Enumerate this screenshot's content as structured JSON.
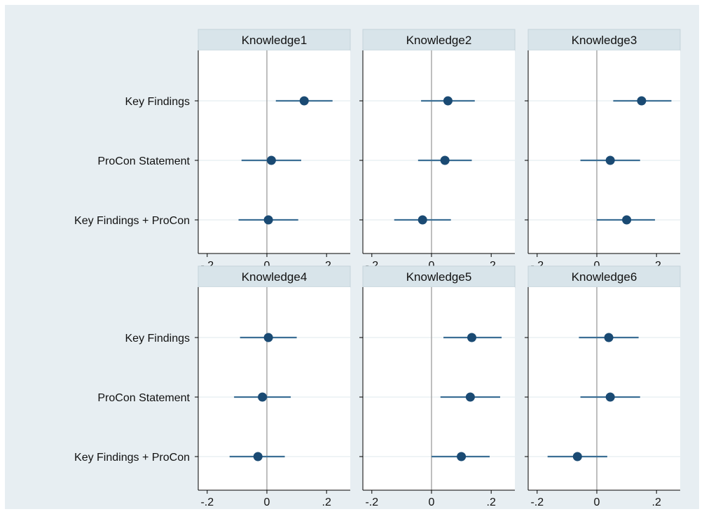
{
  "colors": {
    "outer_background": "#e7eef2",
    "plot_background": "#ffffff",
    "strip_background": "#d8e4ea",
    "strip_border": "#c5d3da",
    "gridline": "#eaf1f4",
    "zero_line": "#a8a8a8",
    "axis_line": "#000000",
    "marker": "#1a4a73",
    "ci_line": "#3c6f95"
  },
  "chart_data": {
    "type": "scatter",
    "subtype": "coefficient-plot-with-confidence-intervals",
    "categories": [
      "Key Findings",
      "ProCon Statement",
      "Key Findings + ProCon"
    ],
    "xlim": [
      -0.23,
      0.215
    ],
    "x_ticks": [
      {
        "value": -0.2,
        "label": "-.2"
      },
      {
        "value": 0,
        "label": "0"
      },
      {
        "value": 0.2,
        "label": ".2"
      }
    ],
    "reference_line": 0,
    "grid": "horizontal lines at categories",
    "panels": [
      {
        "title": "Knowledge1",
        "points": [
          {
            "category": "Key Findings",
            "estimate": 0.125,
            "lower": 0.03,
            "upper": 0.22
          },
          {
            "category": "ProCon Statement",
            "estimate": 0.015,
            "lower": -0.085,
            "upper": 0.115
          },
          {
            "category": "Key Findings + ProCon",
            "estimate": 0.005,
            "lower": -0.095,
            "upper": 0.105
          }
        ]
      },
      {
        "title": "Knowledge2",
        "points": [
          {
            "category": "Key Findings",
            "estimate": 0.055,
            "lower": -0.035,
            "upper": 0.145
          },
          {
            "category": "ProCon Statement",
            "estimate": 0.045,
            "lower": -0.045,
            "upper": 0.135
          },
          {
            "category": "Key Findings + ProCon",
            "estimate": -0.03,
            "lower": -0.125,
            "upper": 0.065
          }
        ]
      },
      {
        "title": "Knowledge3",
        "points": [
          {
            "category": "Key Findings",
            "estimate": 0.15,
            "lower": 0.055,
            "upper": 0.25
          },
          {
            "category": "ProCon Statement",
            "estimate": 0.045,
            "lower": -0.055,
            "upper": 0.145
          },
          {
            "category": "Key Findings + ProCon",
            "estimate": 0.1,
            "lower": 0.0,
            "upper": 0.195
          }
        ]
      },
      {
        "title": "Knowledge4",
        "points": [
          {
            "category": "Key Findings",
            "estimate": 0.005,
            "lower": -0.09,
            "upper": 0.1
          },
          {
            "category": "ProCon Statement",
            "estimate": -0.015,
            "lower": -0.11,
            "upper": 0.08
          },
          {
            "category": "Key Findings + ProCon",
            "estimate": -0.03,
            "lower": -0.125,
            "upper": 0.06
          }
        ]
      },
      {
        "title": "Knowledge5",
        "points": [
          {
            "category": "Key Findings",
            "estimate": 0.135,
            "lower": 0.04,
            "upper": 0.235
          },
          {
            "category": "ProCon Statement",
            "estimate": 0.13,
            "lower": 0.03,
            "upper": 0.23
          },
          {
            "category": "Key Findings + ProCon",
            "estimate": 0.1,
            "lower": 0.0,
            "upper": 0.195
          }
        ]
      },
      {
        "title": "Knowledge6",
        "points": [
          {
            "category": "Key Findings",
            "estimate": 0.04,
            "lower": -0.06,
            "upper": 0.14
          },
          {
            "category": "ProCon Statement",
            "estimate": 0.045,
            "lower": -0.055,
            "upper": 0.145
          },
          {
            "category": "Key Findings + ProCon",
            "estimate": -0.065,
            "lower": -0.165,
            "upper": 0.035
          }
        ]
      }
    ]
  }
}
